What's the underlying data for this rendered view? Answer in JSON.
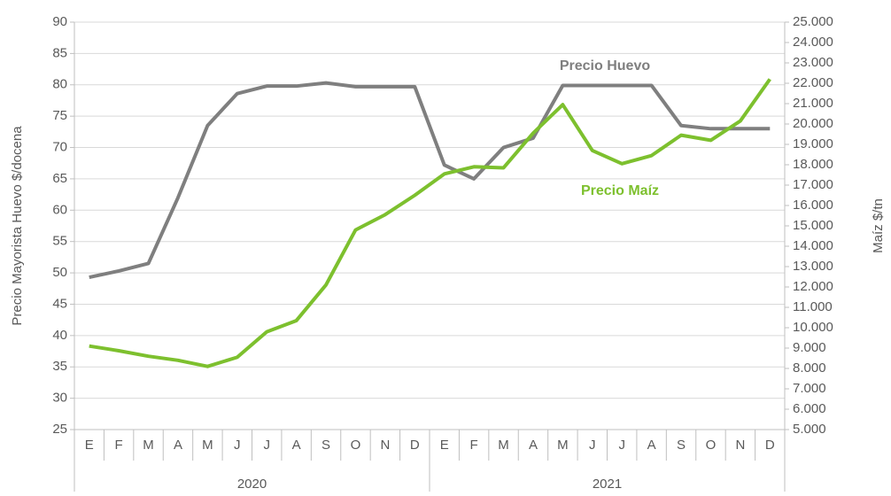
{
  "chart_data": {
    "type": "line",
    "y_label": "Precio Mayorista Huevo $/docena",
    "y2_label": "Maíz $/tn",
    "categories": [
      "E",
      "F",
      "M",
      "A",
      "M",
      "J",
      "J",
      "A",
      "S",
      "O",
      "N",
      "D",
      "E",
      "F",
      "M",
      "A",
      "M",
      "J",
      "J",
      "A",
      "S",
      "O",
      "N",
      "D"
    ],
    "groups": [
      "2020",
      "2021"
    ],
    "ylim": [
      25,
      90
    ],
    "yticks": [
      25,
      30,
      35,
      40,
      45,
      50,
      55,
      60,
      65,
      70,
      75,
      80,
      85,
      90
    ],
    "y2lim": [
      5000,
      25000
    ],
    "y2ticks": [
      {
        "value": 5000,
        "label": "5.000"
      },
      {
        "value": 6000,
        "label": "6.000"
      },
      {
        "value": 7000,
        "label": "7.000"
      },
      {
        "value": 8000,
        "label": "8.000"
      },
      {
        "value": 9000,
        "label": "9.000"
      },
      {
        "value": 10000,
        "label": "10.000"
      },
      {
        "value": 11000,
        "label": "11.000"
      },
      {
        "value": 12000,
        "label": "12.000"
      },
      {
        "value": 13000,
        "label": "13.000"
      },
      {
        "value": 14000,
        "label": "14.000"
      },
      {
        "value": 15000,
        "label": "15.000"
      },
      {
        "value": 16000,
        "label": "16.000"
      },
      {
        "value": 17000,
        "label": "17.000"
      },
      {
        "value": 18000,
        "label": "18.000"
      },
      {
        "value": 19000,
        "label": "19.000"
      },
      {
        "value": 20000,
        "label": "20.000"
      },
      {
        "value": 21000,
        "label": "21.000"
      },
      {
        "value": 22000,
        "label": "22.000"
      },
      {
        "value": 23000,
        "label": "23.000"
      },
      {
        "value": 24000,
        "label": "24.000"
      },
      {
        "value": 25000,
        "label": "25.000"
      }
    ],
    "grid": true,
    "series": [
      {
        "name": "Precio Huevo",
        "color": "#7f7f7f",
        "values": [
          49.3,
          50.3,
          51.5,
          62,
          73.5,
          78.6,
          79.8,
          79.8,
          80.3,
          79.7,
          79.7,
          79.7,
          67.2,
          65,
          70,
          71.5,
          79.9,
          79.9,
          79.9,
          79.9,
          73.5,
          73,
          73,
          73
        ]
      },
      {
        "name": "Precio Maíz",
        "color": "#7dc02e",
        "axis": "y2",
        "values": [
          9100,
          8870,
          8600,
          8400,
          8100,
          8550,
          9800,
          10350,
          12100,
          14800,
          15550,
          16500,
          17550,
          17900,
          17850,
          19550,
          20950,
          18700,
          18050,
          18450,
          19450,
          19200,
          20150,
          22200
        ]
      }
    ]
  }
}
